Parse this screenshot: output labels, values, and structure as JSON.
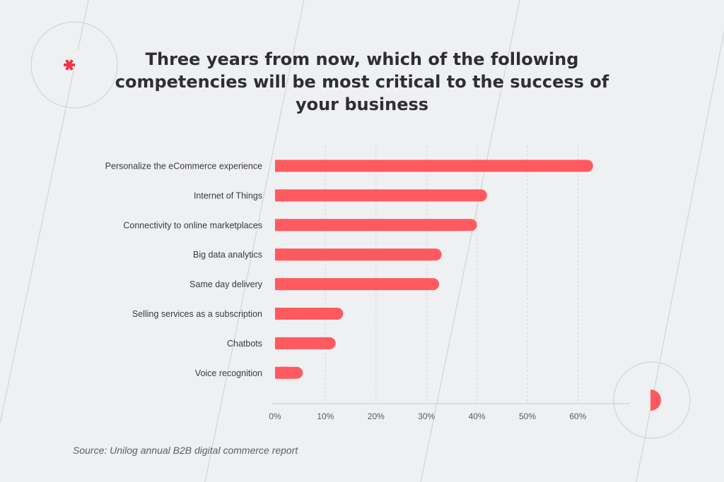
{
  "source_note": "Source: Unilog annual B2B digital commerce report",
  "colors": {
    "bar": "#ff5a5f",
    "accent": "#f2334a",
    "text": "#3a3a40",
    "grid": "#d6d6da"
  },
  "chart_data": {
    "type": "bar",
    "orientation": "horizontal",
    "title": "Three years from now, which of the following competencies will be most critical to the success of your business",
    "categories": [
      "Personalize the eCommerce experience",
      "Internet of Things",
      "Connectivity to online marketplaces",
      "Big data analytics",
      "Same day delivery",
      "Selling services as a subscription",
      "Chatbots",
      "Voice recognition"
    ],
    "values": [
      63,
      42,
      40,
      33,
      32.5,
      13.5,
      12,
      5.5
    ],
    "xlim": [
      0,
      70
    ],
    "xticks": [
      "0%",
      "10%",
      "20%",
      "30%",
      "40%",
      "50%",
      "60%"
    ],
    "xtick_values": [
      0,
      10,
      20,
      30,
      40,
      50,
      60
    ],
    "grid": "vertical dashed"
  }
}
